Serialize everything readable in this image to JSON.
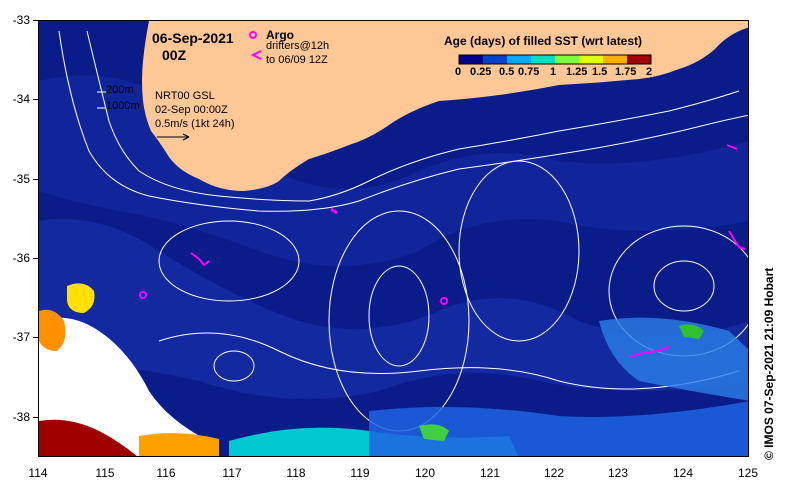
{
  "map": {
    "date_title": "06-Sep-2021",
    "time_title": "00Z",
    "argo_label": "Argo",
    "drifter_label_line1": "drifters@12h",
    "drifter_label_line2": "to 06/09 12Z",
    "depth_label_200": "200m",
    "depth_label_1000": "1000m",
    "product_line1": "NRT00 GSL",
    "product_line2": "02-Sep 00:00Z",
    "scale_label": "0.5m/s (1kt 24h)",
    "credit": "© IMOS 07-Sep-2021 21:09 Hobart",
    "colors": {
      "land": "#fdc896",
      "ocean_deep": "#0a1c8a",
      "ocean_mid": "#1a38b8",
      "argo": "#ff00ff",
      "contour": "#ffffff"
    }
  },
  "colorbar": {
    "title": "Age (days) of filled SST (wrt latest)",
    "tick_labels": [
      "0",
      "0.25",
      "0.5",
      "0.75",
      "1",
      "1.25",
      "1.5",
      "1.75",
      "2"
    ],
    "colors": [
      "#00008b",
      "#0044cc",
      "#00aaff",
      "#00e0c0",
      "#80ff40",
      "#e0ff00",
      "#ffb000",
      "#ff4000",
      "#a00000"
    ]
  },
  "axes": {
    "lat_ticks": [
      "-33",
      "-34",
      "-35",
      "-36",
      "-37",
      "-38"
    ],
    "lon_ticks": [
      "114",
      "115",
      "116",
      "117",
      "118",
      "119",
      "120",
      "121",
      "122",
      "123",
      "124",
      "125"
    ]
  }
}
